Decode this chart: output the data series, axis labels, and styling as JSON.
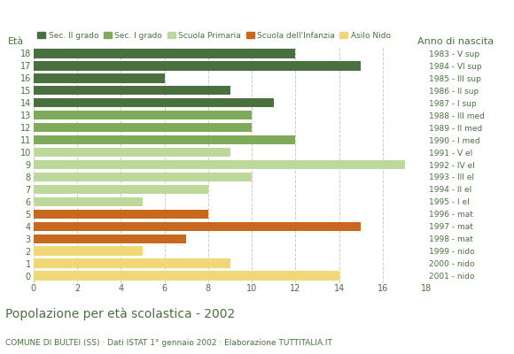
{
  "ages": [
    18,
    17,
    16,
    15,
    14,
    13,
    12,
    11,
    10,
    9,
    8,
    7,
    6,
    5,
    4,
    3,
    2,
    1,
    0
  ],
  "values": [
    12,
    15,
    6,
    9,
    11,
    10,
    10,
    12,
    9,
    17,
    10,
    8,
    5,
    8,
    15,
    7,
    5,
    9,
    14
  ],
  "categories": [
    "Sec. II grado",
    "Sec. II grado",
    "Sec. II grado",
    "Sec. II grado",
    "Sec. II grado",
    "Sec. I grado",
    "Sec. I grado",
    "Sec. I grado",
    "Scuola Primaria",
    "Scuola Primaria",
    "Scuola Primaria",
    "Scuola Primaria",
    "Scuola Primaria",
    "Scuola dell'Infanzia",
    "Scuola dell'Infanzia",
    "Scuola dell'Infanzia",
    "Asilo Nido",
    "Asilo Nido",
    "Asilo Nido"
  ],
  "right_labels": [
    "1983 - V sup",
    "1984 - VI sup",
    "1985 - III sup",
    "1986 - II sup",
    "1987 - I sup",
    "1988 - III med",
    "1989 - II med",
    "1990 - I med",
    "1991 - V el",
    "1992 - IV el",
    "1993 - III el",
    "1994 - II el",
    "1995 - I el",
    "1996 - mat",
    "1997 - mat",
    "1998 - mat",
    "1999 - nido",
    "2000 - nido",
    "2001 - nido"
  ],
  "colors": {
    "Sec. II grado": "#4a7040",
    "Sec. I grado": "#7faa5a",
    "Scuola Primaria": "#bcd89a",
    "Scuola dell'Infanzia": "#c86820",
    "Asilo Nido": "#f0d878"
  },
  "legend_order": [
    "Sec. II grado",
    "Sec. I grado",
    "Scuola Primaria",
    "Scuola dell'Infanzia",
    "Asilo Nido"
  ],
  "title": "Popolazione per età scolastica - 2002",
  "subtitle": "COMUNE DI BULTEI (SS) · Dati ISTAT 1° gennaio 2002 · Elaborazione TUTTITALIA.IT",
  "xlabel_left": "Età",
  "xlabel_right": "Anno di nascita",
  "xlim": [
    0,
    18
  ],
  "xticks": [
    0,
    2,
    4,
    6,
    8,
    10,
    12,
    14,
    16,
    18
  ],
  "title_color": "#4a7040",
  "subtitle_color": "#4a7040",
  "text_color": "#4a7040",
  "bg_color": "#ffffff",
  "grid_color": "#cccccc"
}
